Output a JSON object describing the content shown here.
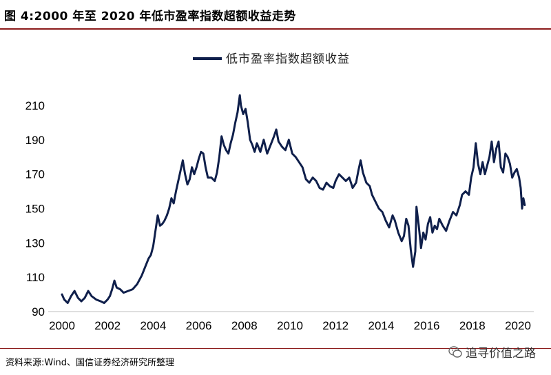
{
  "figure_title": "图 4:2000 年至 2020 年低市盈率指数超额收益走势",
  "source_note": "资料来源:Wind、国信证券经济研究所整理",
  "watermark": "追寻价值之路",
  "colors": {
    "series": "#0f1f4b",
    "rule": "#8b1a1a"
  },
  "chart_data": {
    "type": "line",
    "title": "",
    "xlabel": "",
    "ylabel": "",
    "xlim": [
      2000,
      2020.6
    ],
    "ylim": [
      90,
      215
    ],
    "x_ticks": [
      2000,
      2002,
      2004,
      2006,
      2008,
      2010,
      2012,
      2014,
      2016,
      2018,
      2020
    ],
    "y_ticks": [
      90,
      110,
      130,
      150,
      170,
      190,
      210
    ],
    "legend_position": "top-center",
    "series": [
      {
        "name": "低市盈率指数超额收益",
        "points": [
          [
            2000.0,
            100
          ],
          [
            2000.1,
            97
          ],
          [
            2000.25,
            95
          ],
          [
            2000.4,
            99
          ],
          [
            2000.55,
            102
          ],
          [
            2000.7,
            98
          ],
          [
            2000.85,
            96
          ],
          [
            2001.0,
            98
          ],
          [
            2001.15,
            102
          ],
          [
            2001.3,
            99
          ],
          [
            2001.5,
            97
          ],
          [
            2001.7,
            96
          ],
          [
            2001.85,
            95
          ],
          [
            2002.0,
            97
          ],
          [
            2002.1,
            99
          ],
          [
            2002.2,
            103
          ],
          [
            2002.3,
            108
          ],
          [
            2002.4,
            104
          ],
          [
            2002.55,
            103
          ],
          [
            2002.7,
            101
          ],
          [
            2002.9,
            102
          ],
          [
            2003.1,
            103
          ],
          [
            2003.3,
            106
          ],
          [
            2003.5,
            111
          ],
          [
            2003.65,
            116
          ],
          [
            2003.8,
            121
          ],
          [
            2003.9,
            123
          ],
          [
            2004.0,
            128
          ],
          [
            2004.1,
            137
          ],
          [
            2004.2,
            146
          ],
          [
            2004.3,
            140
          ],
          [
            2004.4,
            141
          ],
          [
            2004.5,
            143
          ],
          [
            2004.6,
            146
          ],
          [
            2004.7,
            150
          ],
          [
            2004.8,
            156
          ],
          [
            2004.9,
            153
          ],
          [
            2005.0,
            160
          ],
          [
            2005.1,
            166
          ],
          [
            2005.2,
            172
          ],
          [
            2005.3,
            178
          ],
          [
            2005.4,
            170
          ],
          [
            2005.5,
            164
          ],
          [
            2005.6,
            167
          ],
          [
            2005.7,
            174
          ],
          [
            2005.8,
            170
          ],
          [
            2005.9,
            174
          ],
          [
            2006.0,
            179
          ],
          [
            2006.1,
            183
          ],
          [
            2006.2,
            182
          ],
          [
            2006.3,
            174
          ],
          [
            2006.4,
            168
          ],
          [
            2006.55,
            168
          ],
          [
            2006.7,
            166
          ],
          [
            2006.8,
            171
          ],
          [
            2006.9,
            180
          ],
          [
            2007.0,
            192
          ],
          [
            2007.1,
            187
          ],
          [
            2007.2,
            184
          ],
          [
            2007.3,
            182
          ],
          [
            2007.4,
            188
          ],
          [
            2007.5,
            193
          ],
          [
            2007.6,
            200
          ],
          [
            2007.7,
            206
          ],
          [
            2007.8,
            216
          ],
          [
            2007.85,
            210
          ],
          [
            2007.95,
            205
          ],
          [
            2008.05,
            208
          ],
          [
            2008.15,
            200
          ],
          [
            2008.25,
            190
          ],
          [
            2008.35,
            187
          ],
          [
            2008.45,
            183
          ],
          [
            2008.55,
            188
          ],
          [
            2008.7,
            183
          ],
          [
            2008.85,
            190
          ],
          [
            2009.0,
            182
          ],
          [
            2009.15,
            187
          ],
          [
            2009.3,
            192
          ],
          [
            2009.4,
            196
          ],
          [
            2009.5,
            189
          ],
          [
            2009.65,
            186
          ],
          [
            2009.8,
            184
          ],
          [
            2009.95,
            190
          ],
          [
            2010.1,
            182
          ],
          [
            2010.25,
            180
          ],
          [
            2010.4,
            177
          ],
          [
            2010.55,
            174
          ],
          [
            2010.7,
            167
          ],
          [
            2010.85,
            165
          ],
          [
            2011.0,
            168
          ],
          [
            2011.15,
            166
          ],
          [
            2011.3,
            162
          ],
          [
            2011.45,
            161
          ],
          [
            2011.6,
            165
          ],
          [
            2011.75,
            163
          ],
          [
            2011.9,
            162
          ],
          [
            2012.0,
            166
          ],
          [
            2012.15,
            170
          ],
          [
            2012.3,
            168
          ],
          [
            2012.45,
            166
          ],
          [
            2012.6,
            168
          ],
          [
            2012.75,
            162
          ],
          [
            2012.9,
            165
          ],
          [
            2013.0,
            172
          ],
          [
            2013.1,
            178
          ],
          [
            2013.2,
            171
          ],
          [
            2013.35,
            165
          ],
          [
            2013.5,
            163
          ],
          [
            2013.6,
            158
          ],
          [
            2013.75,
            154
          ],
          [
            2013.9,
            150
          ],
          [
            2014.05,
            148
          ],
          [
            2014.2,
            143
          ],
          [
            2014.35,
            139
          ],
          [
            2014.5,
            146
          ],
          [
            2014.6,
            143
          ],
          [
            2014.75,
            136
          ],
          [
            2014.9,
            131
          ],
          [
            2015.0,
            134
          ],
          [
            2015.1,
            144
          ],
          [
            2015.2,
            140
          ],
          [
            2015.3,
            126
          ],
          [
            2015.4,
            116
          ],
          [
            2015.5,
            125
          ],
          [
            2015.55,
            151
          ],
          [
            2015.65,
            140
          ],
          [
            2015.75,
            127
          ],
          [
            2015.85,
            136
          ],
          [
            2015.95,
            132
          ],
          [
            2016.05,
            141
          ],
          [
            2016.15,
            145
          ],
          [
            2016.25,
            136
          ],
          [
            2016.35,
            140
          ],
          [
            2016.45,
            138
          ],
          [
            2016.55,
            144
          ],
          [
            2016.7,
            140
          ],
          [
            2016.85,
            137
          ],
          [
            2017.0,
            143
          ],
          [
            2017.15,
            148
          ],
          [
            2017.3,
            146
          ],
          [
            2017.45,
            152
          ],
          [
            2017.55,
            158
          ],
          [
            2017.7,
            160
          ],
          [
            2017.85,
            158
          ],
          [
            2017.95,
            168
          ],
          [
            2018.05,
            174
          ],
          [
            2018.15,
            188
          ],
          [
            2018.25,
            176
          ],
          [
            2018.35,
            170
          ],
          [
            2018.45,
            177
          ],
          [
            2018.55,
            170
          ],
          [
            2018.65,
            175
          ],
          [
            2018.75,
            180
          ],
          [
            2018.85,
            189
          ],
          [
            2018.95,
            177
          ],
          [
            2019.05,
            185
          ],
          [
            2019.15,
            189
          ],
          [
            2019.25,
            174
          ],
          [
            2019.35,
            171
          ],
          [
            2019.45,
            182
          ],
          [
            2019.55,
            180
          ],
          [
            2019.65,
            176
          ],
          [
            2019.75,
            168
          ],
          [
            2019.85,
            171
          ],
          [
            2019.95,
            173
          ],
          [
            2020.05,
            168
          ],
          [
            2020.12,
            162
          ],
          [
            2020.18,
            150
          ],
          [
            2020.24,
            156
          ],
          [
            2020.3,
            152
          ]
        ]
      }
    ]
  }
}
